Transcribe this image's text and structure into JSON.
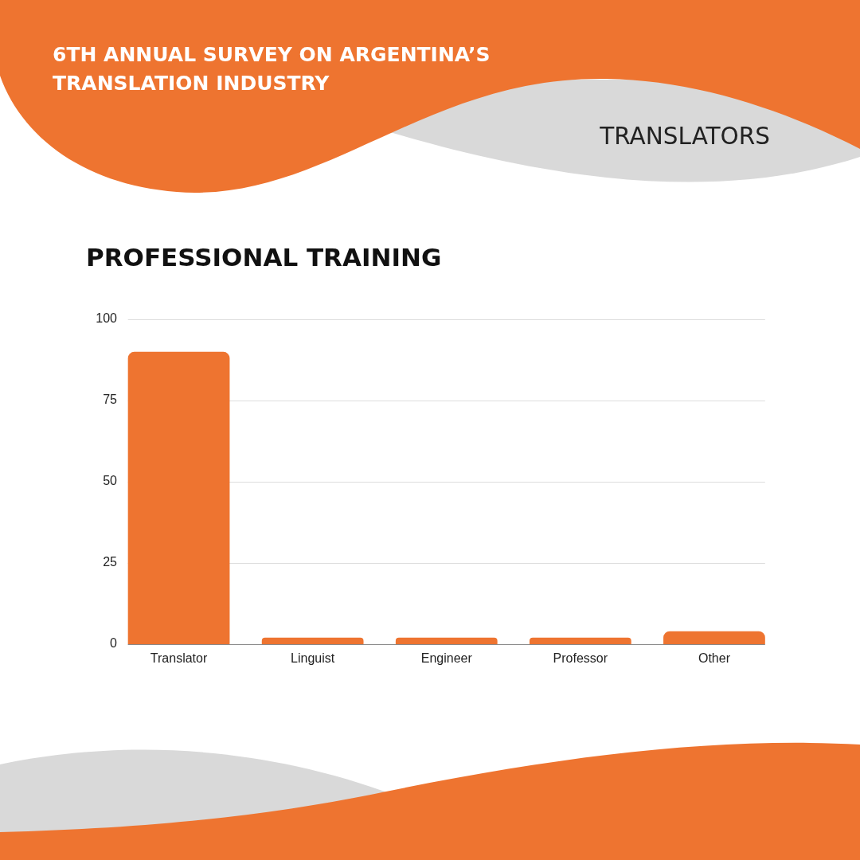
{
  "chart_data": {
    "type": "bar",
    "title": "PROFESSIONAL TRAINING",
    "subtitle": "TRANSLATORS",
    "annotations": [
      "6TH ANNUAL SURVEY ON ARGENTINA’S TRANSLATION INDUSTRY"
    ],
    "categories": [
      "Translator",
      "Linguist",
      "Engineer",
      "Professor",
      "Other"
    ],
    "values": [
      90,
      2,
      2,
      2,
      4
    ],
    "color": "#ee7430",
    "ylim": [
      0,
      100
    ],
    "yticks": [
      0,
      25,
      50,
      75,
      100
    ],
    "grid": "y"
  }
}
